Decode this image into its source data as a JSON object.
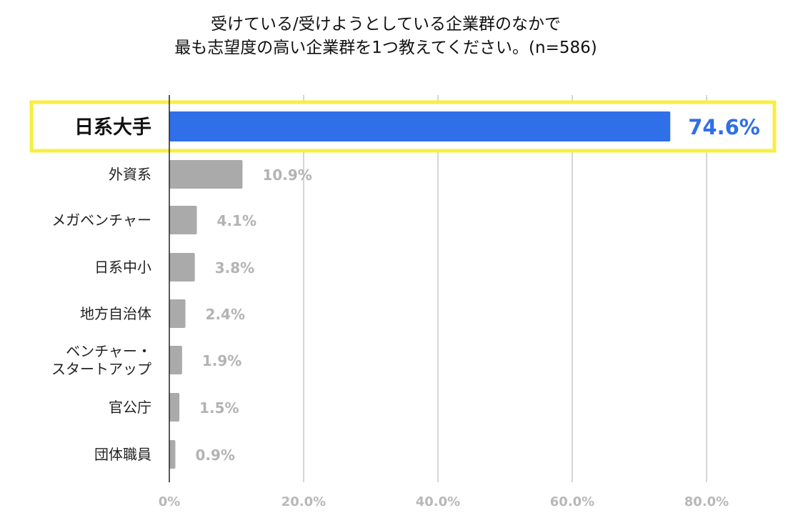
{
  "chart_data": {
    "type": "bar",
    "orientation": "horizontal",
    "title_lines": [
      "受けている/受けようとしている企業群のなかで",
      "最も志望度の高い企業群を1つ教えてください。(n=586)"
    ],
    "categories": [
      "日系大手",
      "外資系",
      "メガベンチャー",
      "日系中小",
      "地方自治体",
      "ベンチャー・スタートアップ",
      "官公庁",
      "団体職員"
    ],
    "category_lines": [
      [
        "日系大手"
      ],
      [
        "外資系"
      ],
      [
        "メガベンチャー"
      ],
      [
        "日系中小"
      ],
      [
        "地方自治体"
      ],
      [
        "ベンチャー・",
        "スタートアップ"
      ],
      [
        "官公庁"
      ],
      [
        "団体職員"
      ]
    ],
    "values": [
      74.6,
      10.9,
      4.1,
      3.8,
      2.4,
      1.9,
      1.5,
      0.9
    ],
    "value_labels": [
      "74.6%",
      "10.9%",
      "4.1%",
      "3.8%",
      "2.4%",
      "1.9%",
      "1.5%",
      "0.9%"
    ],
    "xlim": [
      0,
      90
    ],
    "xticks": [
      0,
      20,
      40,
      60,
      80
    ],
    "xtick_labels": [
      "0%",
      "20.0%",
      "40.0%",
      "60.0%",
      "80.0%"
    ],
    "highlight_index": 0,
    "colors": {
      "highlight": "#2f6fe8",
      "bar": "#aaaaaa",
      "frame": "#f7ef3f",
      "grid": "#c8c8c8"
    },
    "xlabel": "",
    "ylabel": ""
  }
}
